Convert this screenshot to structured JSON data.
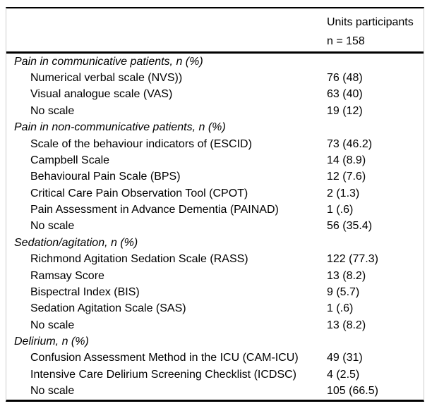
{
  "table": {
    "header": {
      "line1": "Units participants",
      "line2": "n = 158"
    },
    "sections": [
      {
        "title": "Pain in communicative patients, n (%)",
        "rows": [
          {
            "label": "Numerical verbal scale (NVS))",
            "value": "76 (48)"
          },
          {
            "label": "Visual analogue scale (VAS)",
            "value": "63 (40)"
          },
          {
            "label": "No scale",
            "value": "19 (12)"
          }
        ]
      },
      {
        "title": "Pain in non-communicative patients, n (%)",
        "rows": [
          {
            "label": "Scale of the behaviour indicators of (ESCID)",
            "value": "73 (46.2)"
          },
          {
            "label": "Campbell Scale",
            "value": "14 (8.9)"
          },
          {
            "label": "Behavioural Pain Scale (BPS)",
            "value": "12 (7.6)"
          },
          {
            "label": "Critical Care Pain Observation Tool (CPOT)",
            "value": "2 (1.3)"
          },
          {
            "label": "Pain Assessment in Advance Dementia (PAINAD)",
            "value": "1 (.6)"
          },
          {
            "label": "No scale",
            "value": "56 (35.4)"
          }
        ]
      },
      {
        "title": "Sedation/agitation, n (%)",
        "rows": [
          {
            "label": "Richmond Agitation Sedation Scale (RASS)",
            "value": "122 (77.3)"
          },
          {
            "label": "Ramsay Score",
            "value": "13 (8.2)"
          },
          {
            "label": "Bispectral Index (BIS)",
            "value": "9 (5.7)"
          },
          {
            "label": "Sedation Agitation Scale (SAS)",
            "value": "1 (.6)"
          },
          {
            "label": "No scale",
            "value": "13 (8.2)"
          }
        ]
      },
      {
        "title": "Delirium, n (%)",
        "rows": [
          {
            "label": "Confusion Assessment Method in the ICU (CAM-ICU)",
            "value": "49 (31)"
          },
          {
            "label": "Intensive Care Delirium Screening Checklist (ICDSC)",
            "value": "4 (2.5)"
          },
          {
            "label": "No scale",
            "value": "105 (66.5)"
          }
        ]
      }
    ]
  }
}
